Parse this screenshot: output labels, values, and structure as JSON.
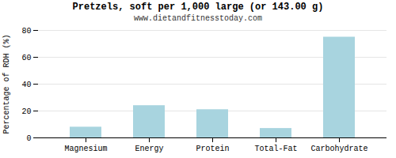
{
  "chart_data": {
    "type": "bar",
    "title": "Pretzels, soft per 1,000 large (or 143.00 g)",
    "subtitle": "www.dietandfitnesstoday.com",
    "categories": [
      "Magnesium",
      "Energy",
      "Protein",
      "Total-Fat",
      "Carbohydrate"
    ],
    "values": [
      8,
      24,
      21,
      7,
      75
    ],
    "color": "#a8d4df",
    "ylabel": "Percentage of RDH (%)",
    "ylim": [
      0,
      80
    ],
    "yticks": [
      0,
      20,
      40,
      60,
      80
    ],
    "grid": true
  }
}
